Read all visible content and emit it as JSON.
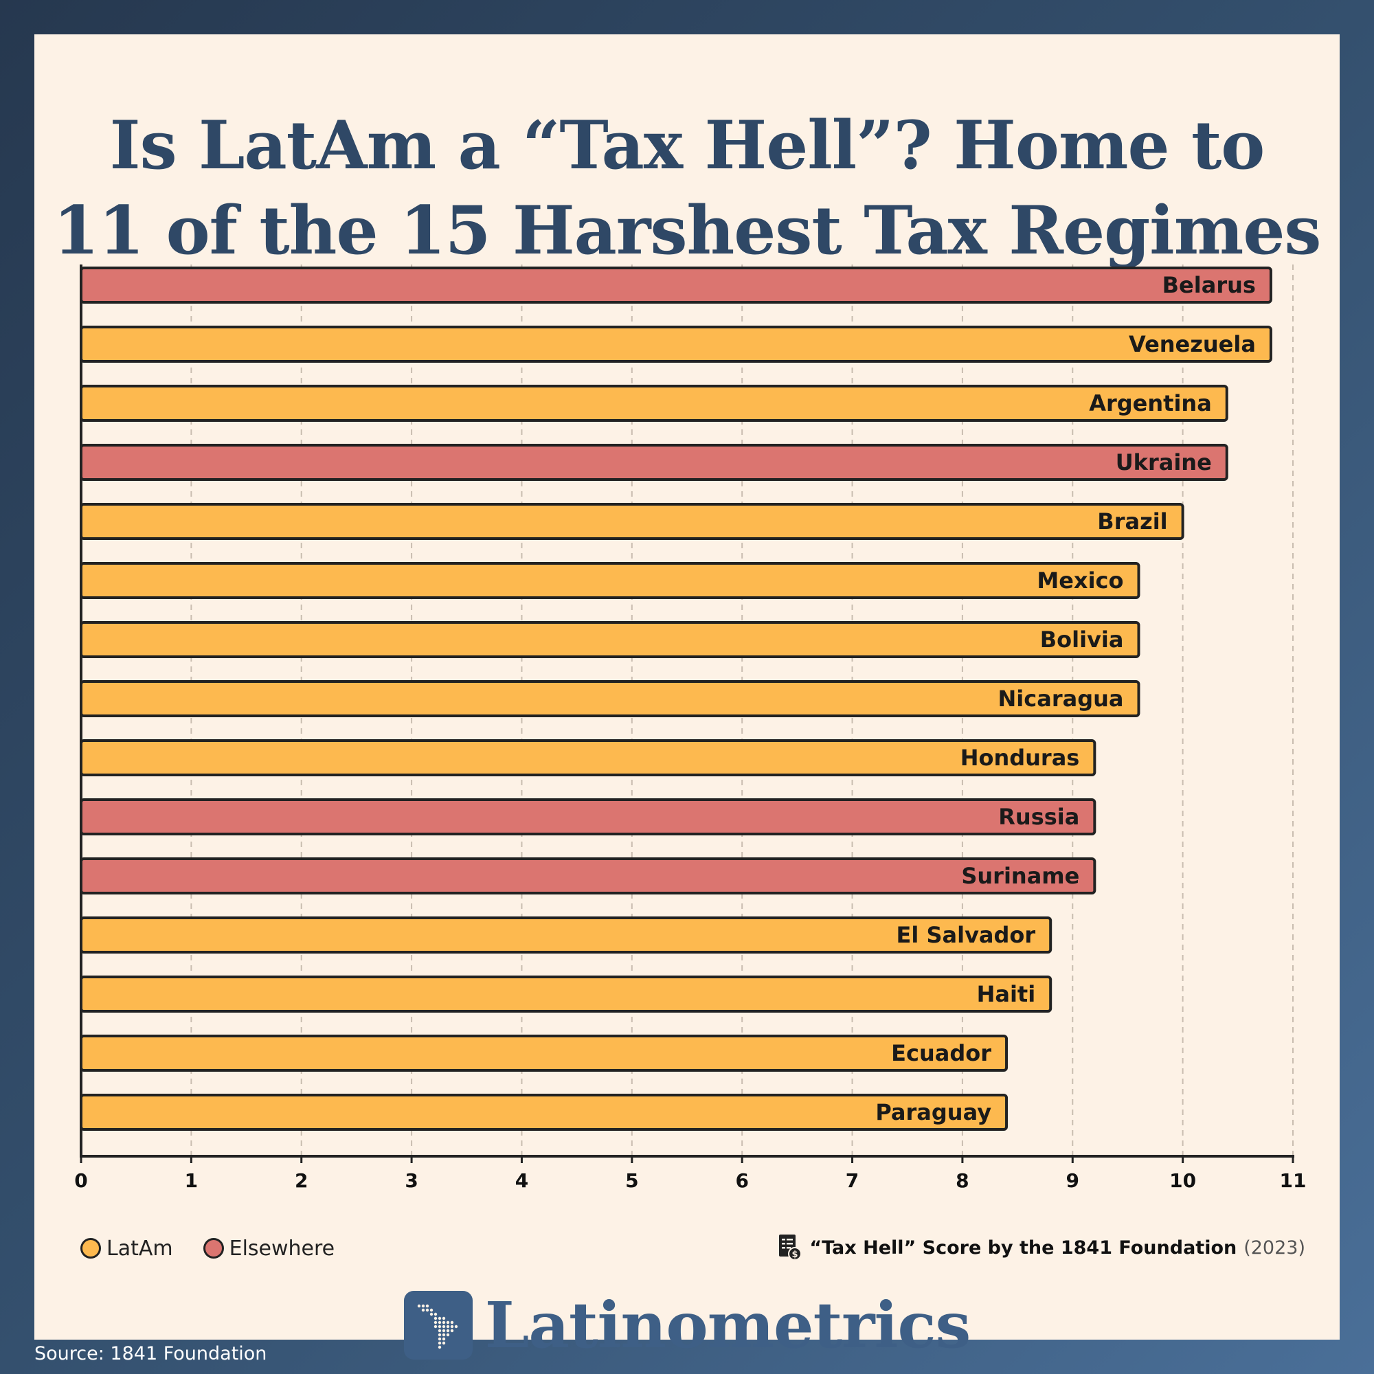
{
  "title_line1": "Is LatAm a “Tax Hell”? Home to",
  "title_line2": "11 of the 15 Harshest Tax Regimes",
  "legend": {
    "latam_label": "LatAm",
    "elsewhere_label": "Elsewhere"
  },
  "note": {
    "icon": "tax-document-icon",
    "text": "“Tax Hell” Score by the 1841 Foundation",
    "year": "(2023)"
  },
  "brand": {
    "logo_icon": "latin-america-map-icon",
    "name": "Latinometrics"
  },
  "source": "Source: 1841 Foundation",
  "colors": {
    "latam": "#fdb94f",
    "elsewhere": "#db7570",
    "title": "#2f4866",
    "brand": "#3e5f86"
  },
  "chart_data": {
    "type": "bar",
    "orientation": "horizontal",
    "categories": [
      "Belarus",
      "Venezuela",
      "Argentina",
      "Ukraine",
      "Brazil",
      "Mexico",
      "Bolivia",
      "Nicaragua",
      "Honduras",
      "Russia",
      "Suriname",
      "El Salvador",
      "Haiti",
      "Ecuador",
      "Paraguay"
    ],
    "values": [
      10.8,
      10.8,
      10.4,
      10.4,
      10.0,
      9.6,
      9.6,
      9.6,
      9.2,
      9.2,
      9.2,
      8.8,
      8.8,
      8.4,
      8.4
    ],
    "groups": [
      "Elsewhere",
      "LatAm",
      "LatAm",
      "Elsewhere",
      "LatAm",
      "LatAm",
      "LatAm",
      "LatAm",
      "LatAm",
      "Elsewhere",
      "Elsewhere",
      "LatAm",
      "LatAm",
      "LatAm",
      "LatAm"
    ],
    "xlim": [
      0,
      11
    ],
    "xticks": [
      0,
      1,
      2,
      3,
      4,
      5,
      6,
      7,
      8,
      9,
      10,
      11
    ],
    "grid": "vertical dashed",
    "legend_position": "bottom-left"
  }
}
